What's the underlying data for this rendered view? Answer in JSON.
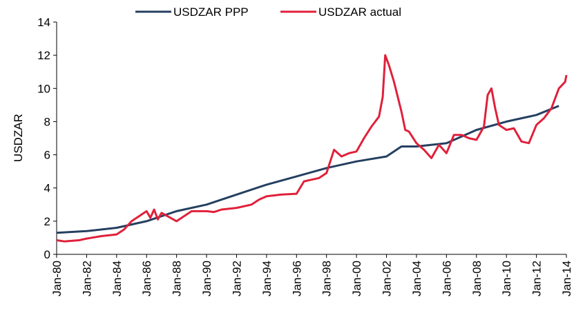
{
  "chart_data": {
    "type": "line",
    "ylabel": "USDZAR",
    "ylim": [
      0,
      14
    ],
    "yticks": [
      0,
      2,
      4,
      6,
      8,
      10,
      12,
      14
    ],
    "xlim": [
      "1980-01",
      "2014-01"
    ],
    "xticks": [
      {
        "value": "1980-01",
        "label": "Jan-80"
      },
      {
        "value": "1982-01",
        "label": "Jan-82"
      },
      {
        "value": "1984-01",
        "label": "Jan-84"
      },
      {
        "value": "1986-01",
        "label": "Jan-86"
      },
      {
        "value": "1988-01",
        "label": "Jan-88"
      },
      {
        "value": "1990-01",
        "label": "Jan-90"
      },
      {
        "value": "1992-01",
        "label": "Jan-92"
      },
      {
        "value": "1994-01",
        "label": "Jan-94"
      },
      {
        "value": "1996-01",
        "label": "Jan-96"
      },
      {
        "value": "1998-01",
        "label": "Jan-98"
      },
      {
        "value": "2000-01",
        "label": "Jan-00"
      },
      {
        "value": "2002-01",
        "label": "Jan-02"
      },
      {
        "value": "2004-01",
        "label": "Jan-04"
      },
      {
        "value": "2006-01",
        "label": "Jan-06"
      },
      {
        "value": "2008-01",
        "label": "Jan-08"
      },
      {
        "value": "2010-01",
        "label": "Jan-10"
      },
      {
        "value": "2012-01",
        "label": "Jan-12"
      },
      {
        "value": "2014-01",
        "label": "Jan-14"
      }
    ],
    "series": [
      {
        "name": "USDZAR PPP",
        "color": "#243f60",
        "x": [
          "1980-01",
          "1982-01",
          "1984-01",
          "1986-01",
          "1988-01",
          "1990-01",
          "1992-01",
          "1994-01",
          "1996-01",
          "1998-01",
          "2000-01",
          "2002-01",
          "2003-01",
          "2004-01",
          "2006-01",
          "2008-01",
          "2010-01",
          "2012-01",
          "2013-07"
        ],
        "values": [
          1.3,
          1.4,
          1.6,
          2.0,
          2.6,
          3.0,
          3.6,
          4.2,
          4.7,
          5.2,
          5.6,
          5.9,
          6.5,
          6.5,
          6.7,
          7.5,
          8.0,
          8.4,
          8.95
        ]
      },
      {
        "name": "USDZAR actual",
        "color": "#e0203a",
        "x": [
          "1980-01",
          "1980-07",
          "1981-07",
          "1982-01",
          "1983-01",
          "1984-01",
          "1984-07",
          "1985-01",
          "1985-07",
          "1986-01",
          "1986-04",
          "1986-07",
          "1986-10",
          "1987-01",
          "1988-01",
          "1988-07",
          "1989-01",
          "1990-01",
          "1990-07",
          "1991-01",
          "1992-01",
          "1993-01",
          "1993-07",
          "1994-01",
          "1995-01",
          "1996-01",
          "1996-07",
          "1997-01",
          "1997-07",
          "1998-01",
          "1998-07",
          "1999-01",
          "1999-07",
          "2000-01",
          "2000-07",
          "2001-01",
          "2001-07",
          "2001-10",
          "2001-12",
          "2002-03",
          "2002-07",
          "2003-01",
          "2003-04",
          "2003-07",
          "2004-01",
          "2004-07",
          "2005-01",
          "2005-07",
          "2006-01",
          "2006-07",
          "2007-01",
          "2007-07",
          "2008-01",
          "2008-07",
          "2008-10",
          "2009-01",
          "2009-04",
          "2009-07",
          "2010-01",
          "2010-07",
          "2011-01",
          "2011-07",
          "2012-01",
          "2012-07",
          "2013-01",
          "2013-07",
          "2013-12",
          "2014-01"
        ],
        "values": [
          0.85,
          0.78,
          0.85,
          0.95,
          1.1,
          1.2,
          1.5,
          2.0,
          2.3,
          2.6,
          2.2,
          2.7,
          2.1,
          2.5,
          2.0,
          2.3,
          2.6,
          2.6,
          2.55,
          2.7,
          2.8,
          3.0,
          3.3,
          3.5,
          3.6,
          3.65,
          4.4,
          4.5,
          4.6,
          4.9,
          6.3,
          5.9,
          6.1,
          6.2,
          7.0,
          7.7,
          8.3,
          9.5,
          12.0,
          11.4,
          10.4,
          8.6,
          7.5,
          7.4,
          6.7,
          6.3,
          5.8,
          6.6,
          6.1,
          7.2,
          7.2,
          7.0,
          6.9,
          7.7,
          9.6,
          10.0,
          8.8,
          7.8,
          7.5,
          7.6,
          6.8,
          6.7,
          7.8,
          8.2,
          8.8,
          10.0,
          10.4,
          10.8
        ]
      }
    ]
  }
}
